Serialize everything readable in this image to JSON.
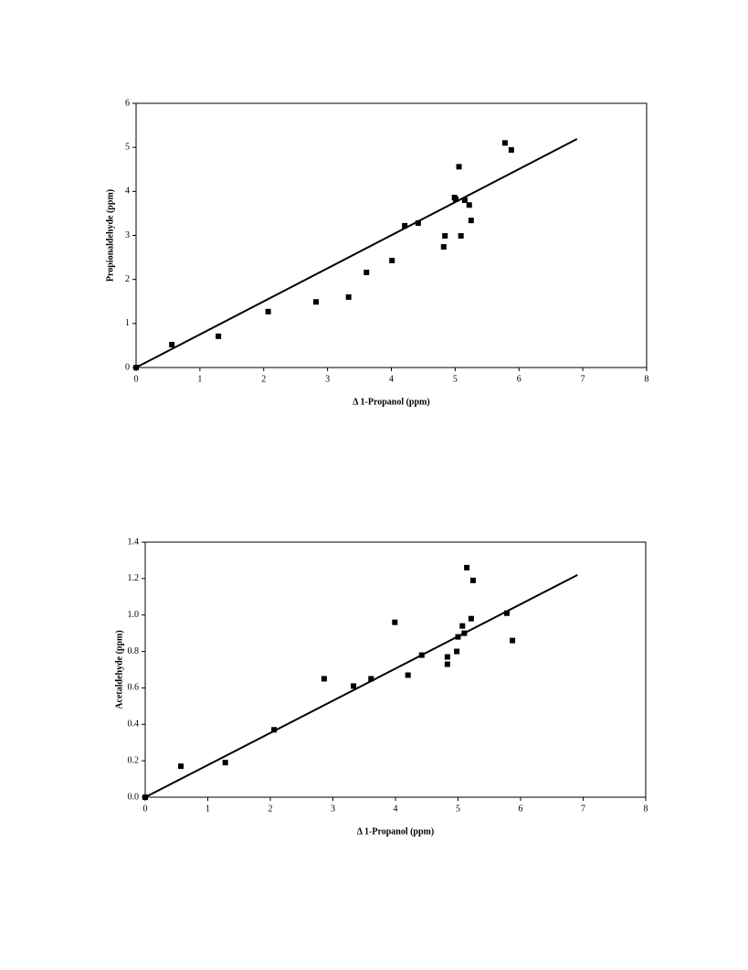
{
  "chart_data": [
    {
      "type": "scatter",
      "xlabel": "Δ 1-Propanol (ppm)",
      "ylabel": "Propionaldehyde (ppm)",
      "xlim": [
        0,
        8
      ],
      "ylim": [
        0,
        6
      ],
      "xticks": [
        0,
        1,
        2,
        3,
        4,
        5,
        6,
        7,
        8
      ],
      "yticks": [
        0,
        1,
        2,
        3,
        4,
        5,
        6
      ],
      "series": [
        {
          "type": "scatter",
          "color": "#000000",
          "x": [
            0,
            0.56,
            1.29,
            2.07,
            2.82,
            3.33,
            3.61,
            4.01,
            4.21,
            4.42,
            4.84,
            4.82,
            4.99,
            5.01,
            5.06,
            5.09,
            5.15,
            5.22,
            5.25,
            5.78,
            5.88
          ],
          "values": [
            0,
            0.52,
            0.71,
            1.27,
            1.49,
            1.6,
            2.16,
            2.43,
            3.22,
            3.28,
            2.99,
            2.74,
            3.86,
            3.82,
            4.56,
            2.99,
            3.8,
            3.69,
            3.34,
            5.1,
            4.94
          ]
        },
        {
          "type": "line",
          "color": "#000000",
          "x": [
            0,
            6.91
          ],
          "values": [
            0,
            5.19
          ]
        }
      ]
    },
    {
      "type": "scatter",
      "xlabel": "Δ 1-Propanol (ppm)",
      "ylabel": "Acetaldehyde (ppm)",
      "xlim": [
        0,
        8
      ],
      "ylim": [
        0,
        1.4
      ],
      "xticks": [
        0,
        1,
        2,
        3,
        4,
        5,
        6,
        7,
        8
      ],
      "yticks": [
        {
          "value": 0,
          "label": "0.0"
        },
        0.2,
        0.4,
        0.6,
        0.8,
        {
          "value": 1,
          "label": "1.0"
        },
        1.2,
        1.4
      ],
      "series": [
        {
          "type": "scatter",
          "color": "#000000",
          "x": [
            0,
            0.57,
            1.28,
            2.06,
            2.86,
            3.33,
            3.61,
            3.99,
            4.2,
            4.42,
            4.83,
            4.83,
            4.98,
            5.0,
            5.07,
            5.1,
            5.14,
            5.21,
            5.24,
            5.78,
            5.87
          ],
          "values": [
            0,
            0.17,
            0.19,
            0.37,
            0.65,
            0.61,
            0.65,
            0.96,
            0.67,
            0.78,
            0.77,
            0.73,
            0.8,
            0.88,
            0.94,
            0.9,
            1.26,
            0.98,
            1.19,
            1.01,
            0.86
          ]
        },
        {
          "type": "line",
          "color": "#000000",
          "x": [
            0,
            6.91
          ],
          "values": [
            0,
            1.22
          ]
        }
      ]
    }
  ]
}
